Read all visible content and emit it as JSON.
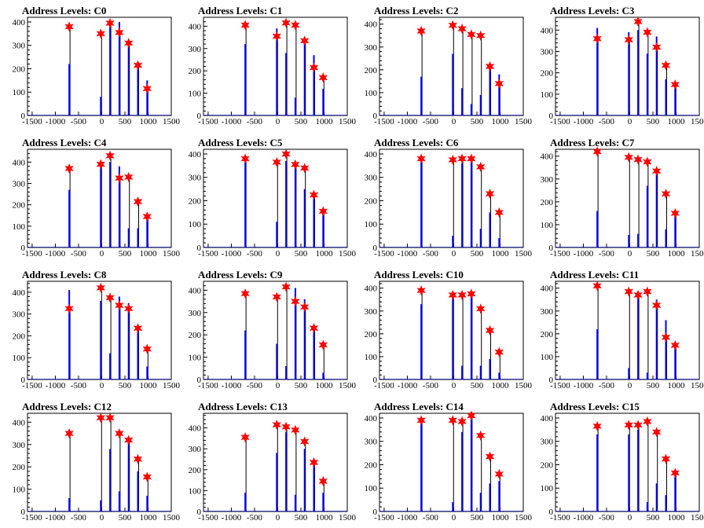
{
  "figure": {
    "panel_title_prefix": "Address Levels: ",
    "colors": {
      "background": "#ffffff",
      "axes": "#000000",
      "histogram_outline": "#000000",
      "histogram_fill": "#0000ff",
      "marker": "#ff0000"
    },
    "x_ticks": [
      -1500,
      -1000,
      -500,
      0,
      500,
      1000,
      1500
    ],
    "x_tick_labels": [
      "-1500",
      "-1000",
      "-500",
      "0",
      "500",
      "1000",
      "1500"
    ]
  },
  "chart_data": [
    {
      "type": "histogram",
      "title": "Address Levels: C0",
      "xlim": [
        -1600,
        1500
      ],
      "ylim": [
        0,
        420
      ],
      "yticks": [
        0,
        100,
        200,
        300,
        400
      ],
      "peaks": [
        [
          -700,
          380,
          220
        ],
        [
          -20,
          350,
          80
        ],
        [
          180,
          395,
          400
        ],
        [
          380,
          355,
          400
        ],
        [
          580,
          310,
          310
        ],
        [
          780,
          215,
          200
        ],
        [
          980,
          115,
          150
        ]
      ],
      "markers": [
        [
          -700,
          380
        ],
        [
          -20,
          350
        ],
        [
          180,
          395
        ],
        [
          380,
          355
        ],
        [
          580,
          310
        ],
        [
          780,
          215
        ],
        [
          980,
          115
        ]
      ]
    },
    {
      "type": "histogram",
      "title": "Address Levels: C1",
      "xlim": [
        -1600,
        1500
      ],
      "ylim": [
        0,
        440
      ],
      "yticks": [
        0,
        100,
        200,
        300,
        400
      ],
      "peaks": [
        [
          -700,
          405,
          320
        ],
        [
          -20,
          355,
          390
        ],
        [
          180,
          415,
          280
        ],
        [
          380,
          405,
          80
        ],
        [
          580,
          335,
          330
        ],
        [
          780,
          215,
          270
        ],
        [
          980,
          170,
          120
        ]
      ],
      "markers": [
        [
          -700,
          405
        ],
        [
          -20,
          355
        ],
        [
          180,
          415
        ],
        [
          380,
          405
        ],
        [
          580,
          335
        ],
        [
          780,
          215
        ],
        [
          980,
          170
        ]
      ]
    },
    {
      "type": "histogram",
      "title": "Address Levels: C2",
      "xlim": [
        -1600,
        1500
      ],
      "ylim": [
        0,
        430
      ],
      "yticks": [
        0,
        100,
        200,
        300,
        400
      ],
      "peaks": [
        [
          -700,
          370,
          170
        ],
        [
          -20,
          395,
          270
        ],
        [
          180,
          380,
          120
        ],
        [
          380,
          355,
          50
        ],
        [
          580,
          350,
          90
        ],
        [
          780,
          215,
          200
        ],
        [
          980,
          140,
          180
        ]
      ],
      "markers": [
        [
          -700,
          370
        ],
        [
          -20,
          395
        ],
        [
          180,
          380
        ],
        [
          380,
          355
        ],
        [
          580,
          350
        ],
        [
          780,
          215
        ],
        [
          980,
          140
        ]
      ]
    },
    {
      "type": "histogram",
      "title": "Address Levels: C3",
      "xlim": [
        -1600,
        1500
      ],
      "ylim": [
        0,
        460
      ],
      "yticks": [
        0,
        100,
        200,
        300,
        400
      ],
      "peaks": [
        [
          -700,
          360,
          410
        ],
        [
          -20,
          355,
          390
        ],
        [
          180,
          440,
          400
        ],
        [
          380,
          390,
          290
        ],
        [
          580,
          320,
          370
        ],
        [
          780,
          235,
          170
        ],
        [
          980,
          145,
          130
        ]
      ],
      "markers": [
        [
          -700,
          360
        ],
        [
          -20,
          355
        ],
        [
          180,
          440
        ],
        [
          380,
          390
        ],
        [
          580,
          320
        ],
        [
          780,
          235
        ],
        [
          980,
          145
        ]
      ]
    },
    {
      "type": "histogram",
      "title": "Address Levels: C4",
      "xlim": [
        -1600,
        1500
      ],
      "ylim": [
        0,
        460
      ],
      "yticks": [
        0,
        100,
        200,
        300,
        400
      ],
      "peaks": [
        [
          -700,
          370,
          270
        ],
        [
          -20,
          390,
          400
        ],
        [
          180,
          430,
          400
        ],
        [
          380,
          325,
          380
        ],
        [
          580,
          330,
          90
        ],
        [
          780,
          215,
          90
        ],
        [
          980,
          145,
          140
        ]
      ],
      "markers": [
        [
          -700,
          370
        ],
        [
          -20,
          390
        ],
        [
          180,
          430
        ],
        [
          380,
          325
        ],
        [
          580,
          330
        ],
        [
          780,
          215
        ],
        [
          980,
          145
        ]
      ]
    },
    {
      "type": "histogram",
      "title": "Address Levels: C5",
      "xlim": [
        -1600,
        1500
      ],
      "ylim": [
        0,
        420
      ],
      "yticks": [
        0,
        100,
        200,
        300,
        400
      ],
      "peaks": [
        [
          -700,
          380,
          390
        ],
        [
          -20,
          365,
          110
        ],
        [
          180,
          400,
          370
        ],
        [
          380,
          355,
          360
        ],
        [
          580,
          340,
          250
        ],
        [
          780,
          225,
          210
        ],
        [
          980,
          155,
          150
        ]
      ],
      "markers": [
        [
          -700,
          380
        ],
        [
          -20,
          365
        ],
        [
          180,
          400
        ],
        [
          380,
          355
        ],
        [
          580,
          340
        ],
        [
          780,
          225
        ],
        [
          980,
          155
        ]
      ]
    },
    {
      "type": "histogram",
      "title": "Address Levels: C6",
      "xlim": [
        -1600,
        1500
      ],
      "ylim": [
        0,
        420
      ],
      "yticks": [
        0,
        100,
        200,
        300,
        400
      ],
      "peaks": [
        [
          -700,
          380,
          370
        ],
        [
          -20,
          375,
          50
        ],
        [
          180,
          380,
          360
        ],
        [
          380,
          380,
          390
        ],
        [
          580,
          345,
          80
        ],
        [
          780,
          230,
          150
        ],
        [
          980,
          150,
          40
        ]
      ],
      "markers": [
        [
          -700,
          380
        ],
        [
          -20,
          375
        ],
        [
          180,
          380
        ],
        [
          380,
          380
        ],
        [
          580,
          345
        ],
        [
          780,
          230
        ],
        [
          980,
          150
        ]
      ]
    },
    {
      "type": "histogram",
      "title": "Address Levels: C7",
      "xlim": [
        -1600,
        1500
      ],
      "ylim": [
        0,
        430
      ],
      "yticks": [
        0,
        100,
        200,
        300,
        400
      ],
      "peaks": [
        [
          -700,
          420,
          160
        ],
        [
          -20,
          395,
          55
        ],
        [
          180,
          385,
          60
        ],
        [
          380,
          375,
          270
        ],
        [
          580,
          335,
          320
        ],
        [
          780,
          235,
          80
        ],
        [
          980,
          150,
          150
        ]
      ],
      "markers": [
        [
          -700,
          420
        ],
        [
          -20,
          395
        ],
        [
          180,
          385
        ],
        [
          380,
          375
        ],
        [
          580,
          335
        ],
        [
          780,
          235
        ],
        [
          980,
          150
        ]
      ]
    },
    {
      "type": "histogram",
      "title": "Address Levels: C8",
      "xlim": [
        -1600,
        1500
      ],
      "ylim": [
        0,
        450
      ],
      "yticks": [
        0,
        100,
        200,
        300,
        400
      ],
      "peaks": [
        [
          -700,
          325,
          410
        ],
        [
          -20,
          420,
          360
        ],
        [
          180,
          375,
          120
        ],
        [
          380,
          340,
          380
        ],
        [
          580,
          325,
          350
        ],
        [
          780,
          235,
          240
        ],
        [
          980,
          140,
          60
        ]
      ],
      "markers": [
        [
          -700,
          325
        ],
        [
          -20,
          420
        ],
        [
          180,
          375
        ],
        [
          380,
          340
        ],
        [
          580,
          325
        ],
        [
          780,
          235
        ],
        [
          980,
          140
        ]
      ]
    },
    {
      "type": "histogram",
      "title": "Address Levels: C9",
      "xlim": [
        -1600,
        1500
      ],
      "ylim": [
        0,
        440
      ],
      "yticks": [
        0,
        100,
        200,
        300,
        400
      ],
      "peaks": [
        [
          -700,
          385,
          220
        ],
        [
          -20,
          370,
          160
        ],
        [
          180,
          415,
          60
        ],
        [
          380,
          350,
          410
        ],
        [
          580,
          325,
          360
        ],
        [
          780,
          230,
          220
        ],
        [
          980,
          155,
          30
        ]
      ],
      "markers": [
        [
          -700,
          385
        ],
        [
          -20,
          370
        ],
        [
          180,
          415
        ],
        [
          380,
          350
        ],
        [
          580,
          325
        ],
        [
          780,
          230
        ],
        [
          980,
          155
        ]
      ]
    },
    {
      "type": "histogram",
      "title": "Address Levels: C10",
      "xlim": [
        -1600,
        1500
      ],
      "ylim": [
        0,
        430
      ],
      "yticks": [
        0,
        100,
        200,
        300,
        400
      ],
      "peaks": [
        [
          -700,
          390,
          330
        ],
        [
          -20,
          370,
          360
        ],
        [
          180,
          370,
          60
        ],
        [
          380,
          375,
          390
        ],
        [
          580,
          310,
          60
        ],
        [
          780,
          215,
          90
        ],
        [
          980,
          120,
          30
        ]
      ],
      "markers": [
        [
          -700,
          390
        ],
        [
          -20,
          370
        ],
        [
          180,
          370
        ],
        [
          380,
          375
        ],
        [
          580,
          310
        ],
        [
          780,
          215
        ],
        [
          980,
          120
        ]
      ]
    },
    {
      "type": "histogram",
      "title": "Address Levels: C11",
      "xlim": [
        -1600,
        1500
      ],
      "ylim": [
        0,
        430
      ],
      "yticks": [
        0,
        100,
        200,
        300,
        400
      ],
      "peaks": [
        [
          -700,
          410,
          220
        ],
        [
          -20,
          385,
          50
        ],
        [
          180,
          370,
          360
        ],
        [
          380,
          385,
          30
        ],
        [
          580,
          325,
          350
        ],
        [
          780,
          185,
          260
        ],
        [
          980,
          150,
          140
        ]
      ],
      "markers": [
        [
          -700,
          410
        ],
        [
          -20,
          385
        ],
        [
          180,
          370
        ],
        [
          380,
          385
        ],
        [
          580,
          325
        ],
        [
          780,
          185
        ],
        [
          980,
          150
        ]
      ]
    },
    {
      "type": "histogram",
      "title": "Address Levels: C12",
      "xlim": [
        -1600,
        1500
      ],
      "ylim": [
        0,
        440
      ],
      "yticks": [
        0,
        100,
        200,
        300,
        400
      ],
      "peaks": [
        [
          -700,
          350,
          60
        ],
        [
          -20,
          420,
          50
        ],
        [
          180,
          420,
          280
        ],
        [
          380,
          350,
          90
        ],
        [
          580,
          320,
          330
        ],
        [
          780,
          235,
          180
        ],
        [
          980,
          155,
          70
        ]
      ],
      "markers": [
        [
          -700,
          350
        ],
        [
          -20,
          420
        ],
        [
          180,
          420
        ],
        [
          380,
          350
        ],
        [
          580,
          320
        ],
        [
          780,
          235
        ],
        [
          980,
          155
        ]
      ]
    },
    {
      "type": "histogram",
      "title": "Address Levels: C13",
      "xlim": [
        -1600,
        1500
      ],
      "ylim": [
        0,
        470
      ],
      "yticks": [
        0,
        100,
        200,
        300,
        400
      ],
      "peaks": [
        [
          -700,
          355,
          90
        ],
        [
          -20,
          415,
          280
        ],
        [
          180,
          405,
          380
        ],
        [
          380,
          390,
          80
        ],
        [
          580,
          335,
          300
        ],
        [
          780,
          235,
          220
        ],
        [
          980,
          145,
          90
        ]
      ],
      "markers": [
        [
          -700,
          355
        ],
        [
          -20,
          415
        ],
        [
          180,
          405
        ],
        [
          380,
          390
        ],
        [
          580,
          335
        ],
        [
          780,
          235
        ],
        [
          980,
          145
        ]
      ]
    },
    {
      "type": "histogram",
      "title": "Address Levels: C14",
      "xlim": [
        -1600,
        1500
      ],
      "ylim": [
        0,
        420
      ],
      "yticks": [
        0,
        100,
        200,
        300,
        400
      ],
      "peaks": [
        [
          -700,
          390,
          380
        ],
        [
          -20,
          390,
          40
        ],
        [
          180,
          385,
          340
        ],
        [
          380,
          410,
          400
        ],
        [
          580,
          325,
          80
        ],
        [
          780,
          235,
          120
        ],
        [
          980,
          160,
          130
        ]
      ],
      "markers": [
        [
          -700,
          390
        ],
        [
          -20,
          390
        ],
        [
          180,
          385
        ],
        [
          380,
          410
        ],
        [
          580,
          325
        ],
        [
          780,
          235
        ],
        [
          980,
          160
        ]
      ]
    },
    {
      "type": "histogram",
      "title": "Address Levels: C15",
      "xlim": [
        -1600,
        1500
      ],
      "ylim": [
        0,
        420
      ],
      "yticks": [
        0,
        100,
        200,
        300,
        400
      ],
      "peaks": [
        [
          -700,
          365,
          330
        ],
        [
          -20,
          370,
          330
        ],
        [
          180,
          370,
          350
        ],
        [
          380,
          385,
          40
        ],
        [
          580,
          340,
          120
        ],
        [
          780,
          225,
          70
        ],
        [
          980,
          165,
          150
        ]
      ],
      "markers": [
        [
          -700,
          365
        ],
        [
          -20,
          370
        ],
        [
          180,
          370
        ],
        [
          380,
          385
        ],
        [
          580,
          340
        ],
        [
          780,
          225
        ],
        [
          980,
          165
        ]
      ]
    }
  ]
}
